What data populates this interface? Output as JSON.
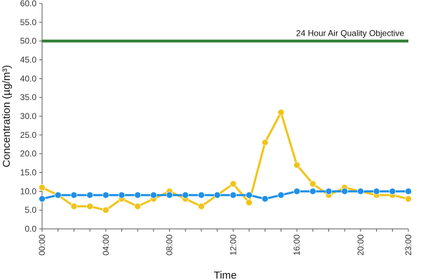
{
  "chart_data": {
    "type": "line",
    "xlabel": "Time",
    "ylabel": "Concentration (µg/m³)",
    "ylim": [
      0,
      60
    ],
    "y_ticks": [
      "0.0",
      "5.0",
      "10.0",
      "15.0",
      "20.0",
      "25.0",
      "30.0",
      "35.0",
      "40.0",
      "45.0",
      "50.0",
      "55.0",
      "60.0"
    ],
    "x_tick_labels": [
      "00:00",
      "04:00",
      "08:00",
      "12:00",
      "16:00",
      "20:00",
      "23:00"
    ],
    "x": [
      0,
      1,
      2,
      3,
      4,
      5,
      6,
      7,
      8,
      9,
      10,
      11,
      12,
      13,
      14,
      15,
      16,
      17,
      18,
      19,
      20,
      21,
      22,
      23
    ],
    "grid": false,
    "series": [
      {
        "color": "#f0c419",
        "values": [
          11,
          9,
          6,
          6,
          5,
          8,
          6,
          8,
          10,
          8,
          6,
          9,
          12,
          7,
          23,
          31,
          17,
          12,
          9,
          11,
          10,
          9,
          9,
          8
        ]
      },
      {
        "color": "#1e90e8",
        "values": [
          8,
          9,
          9,
          9,
          9,
          9,
          9,
          9,
          9,
          9,
          9,
          9,
          9,
          9,
          8,
          9,
          10,
          10,
          10,
          10,
          10,
          10,
          10,
          10
        ]
      }
    ],
    "objective": {
      "value": 50,
      "label": "24 Hour Air Quality Objective",
      "color": "#2e7d32"
    }
  }
}
